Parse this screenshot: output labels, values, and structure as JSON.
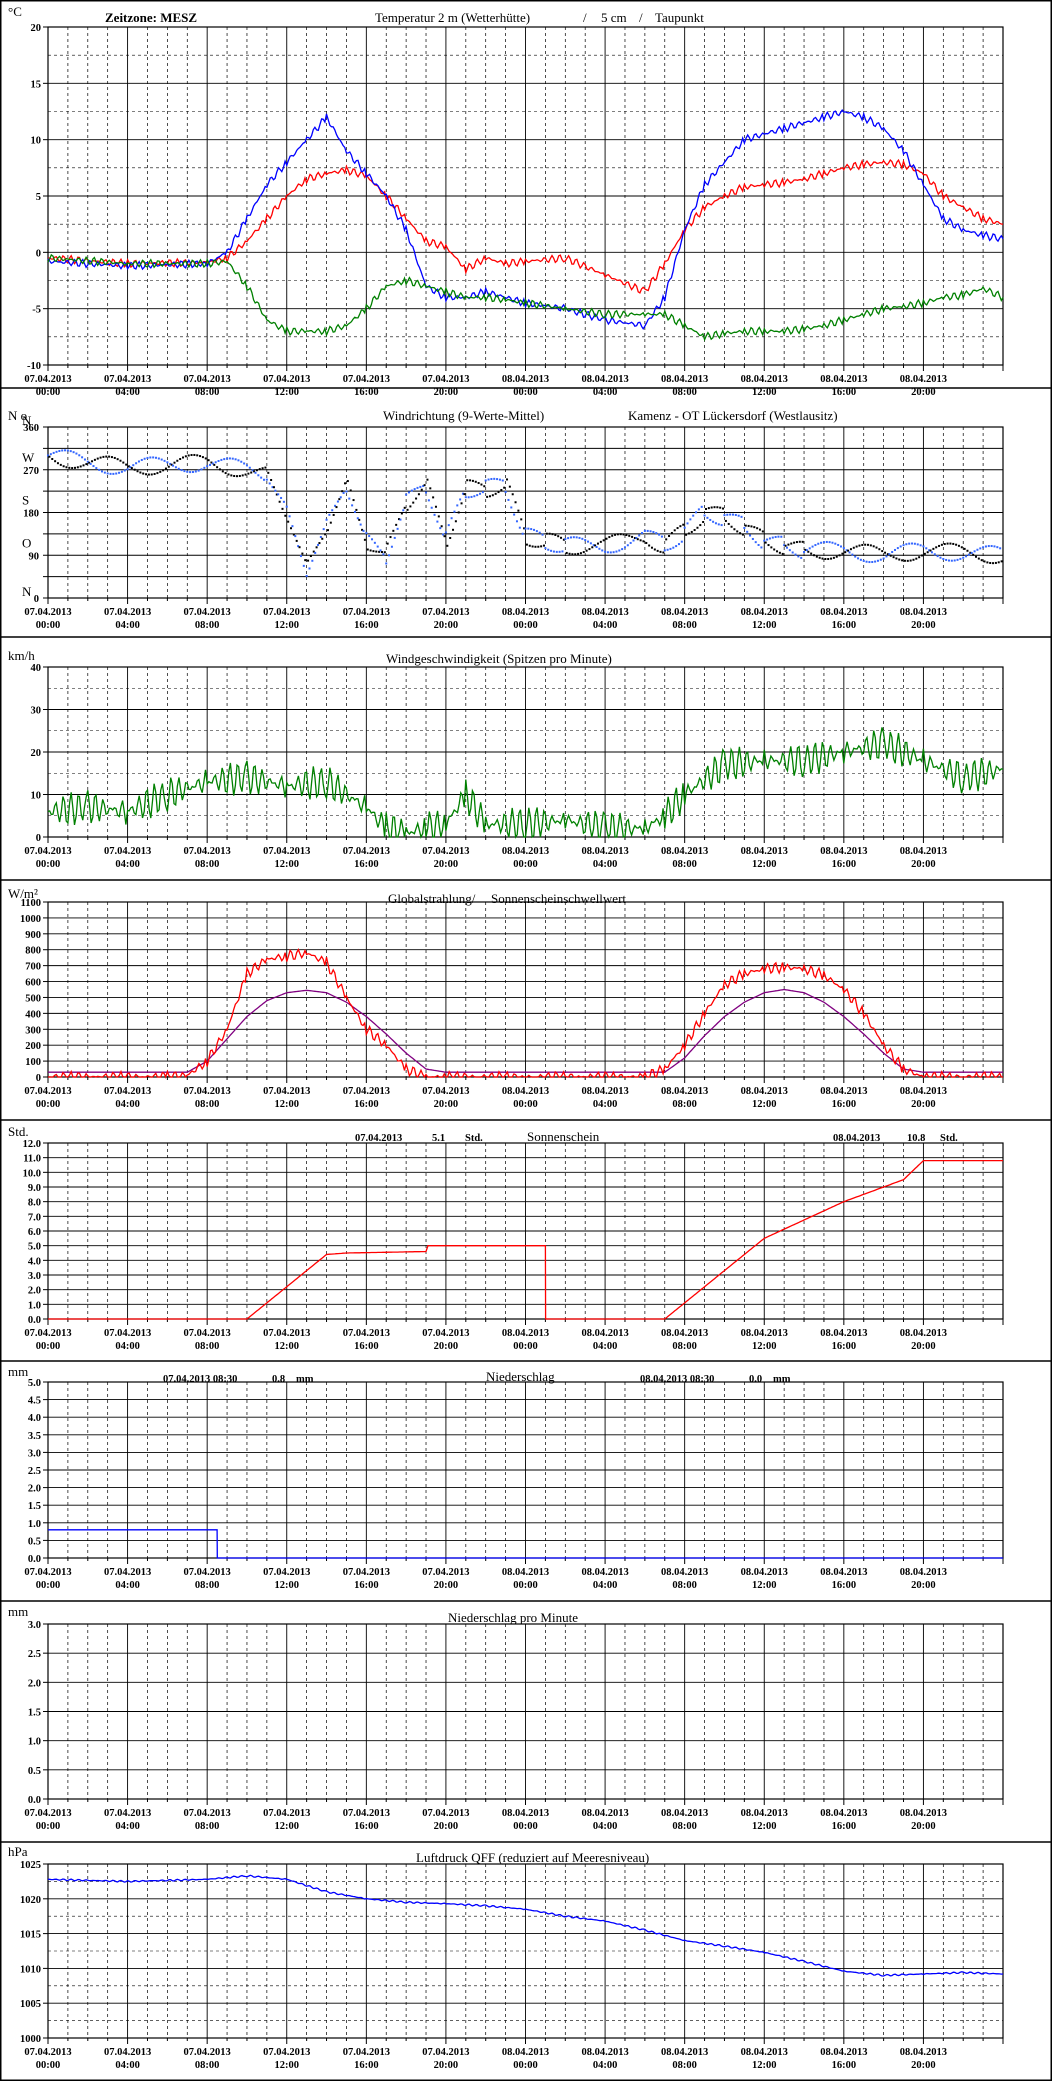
{
  "x_axis": {
    "tick_date_labels": [
      "07.04.2013",
      "07.04.2013",
      "07.04.2013",
      "07.04.2013",
      "07.04.2013",
      "07.04.2013",
      "08.04.2013",
      "08.04.2013",
      "08.04.2013",
      "08.04.2013",
      "08.04.2013",
      "08.04.2013"
    ],
    "tick_time_labels": [
      "00:00",
      "04:00",
      "08:00",
      "12:00",
      "16:00",
      "20:00",
      "00:00",
      "04:00",
      "08:00",
      "12:00",
      "16:00",
      "20:00"
    ],
    "range_hours": [
      0,
      48
    ]
  },
  "colors": {
    "red": "#ff0000",
    "blue": "#0000ff",
    "green": "#008000",
    "wind_blue": "#3366ff",
    "purple": "#800080",
    "grid": "#000000"
  },
  "panels": {
    "temperature": {
      "unit": "°C",
      "timezone": "Zeitzone: MESZ",
      "title_parts": [
        {
          "text": "Temperatur 2 m (Wetterhütte)",
          "color": "#ff0000"
        },
        {
          "text": " / ",
          "color": "#000000"
        },
        {
          "text": "5 cm",
          "color": "#0000ff"
        },
        {
          "text": " / ",
          "color": "#000000"
        },
        {
          "text": "Taupunkt",
          "color": "#008000"
        }
      ],
      "y_ticks": [
        "20",
        "15",
        "10",
        "5",
        "0",
        "-5",
        "-10"
      ]
    },
    "wind_direction": {
      "unit": "N o",
      "title_blue": "Windrichtung (9-Werte-Mittel)",
      "title_black": "Kamenz - OT Lückersdorf (Westlausitz)",
      "y_ticks": [
        "360",
        "270",
        "180",
        "90",
        "0"
      ],
      "y_letters": [
        "N",
        "W",
        "S",
        "O",
        "N"
      ]
    },
    "wind_speed": {
      "unit": "km/h",
      "title": "Windgeschwindigkeit (Spitzen pro Minute)",
      "y_ticks": [
        "40",
        "30",
        "20",
        "10",
        "0"
      ]
    },
    "radiation": {
      "unit": "W/m²",
      "title_black": "Globalstrahlung/ ",
      "title_purple": "Sonnenscheinschwellwert",
      "y_ticks": [
        "1100",
        "1000",
        "900",
        "800",
        "700",
        "600",
        "500",
        "400",
        "300",
        "200",
        "100",
        "0"
      ]
    },
    "sunshine": {
      "unit": "Std.",
      "title": "Sonnenschein",
      "day1_date": "07.04.2013",
      "day1_value": "5.1",
      "day1_unit": "Std.",
      "day2_date": "08.04.2013",
      "day2_value": "10.8",
      "day2_unit": "Std.",
      "y_ticks": [
        "12.0",
        "11.0",
        "10.0",
        "9.0",
        "8.0",
        "7.0",
        "6.0",
        "5.0",
        "4.0",
        "3.0",
        "2.0",
        "1.0",
        "0.0"
      ]
    },
    "precipitation": {
      "unit": "mm",
      "title": "Niederschlag",
      "day1_label": "07.04.2013 08:30",
      "day1_value": "0.8",
      "day1_unit": "mm",
      "day2_label": "08.04.2013 08:30",
      "day2_value": "0.0",
      "day2_unit": "mm",
      "y_ticks": [
        "5.0",
        "4.5",
        "4.0",
        "3.5",
        "3.0",
        "2.5",
        "2.0",
        "1.5",
        "1.0",
        "0.5",
        "0.0"
      ]
    },
    "precip_minute": {
      "unit": "mm",
      "title": "Niederschlag pro Minute",
      "y_ticks": [
        "3.0",
        "2.5",
        "2.0",
        "1.5",
        "1.0",
        "0.5",
        "0.0"
      ]
    },
    "pressure": {
      "unit": "hPa",
      "title": "Luftdruck QFF (reduziert auf Meeresniveau)",
      "y_ticks": [
        "1025",
        "1020",
        "1015",
        "1010",
        "1005",
        "1000"
      ]
    }
  },
  "chart_data": [
    {
      "type": "line",
      "title": "Temperatur 2 m (Wetterhütte) / 5 cm / Taupunkt",
      "ylabel": "°C",
      "ylim": [
        -10,
        20
      ],
      "xlim_hours": [
        0,
        48
      ],
      "series": [
        {
          "name": "Temperatur 2 m (Wetterhütte)",
          "color": "#ff0000",
          "x": [
            0,
            4,
            8,
            9,
            10,
            11,
            12,
            13,
            14,
            15,
            16,
            17,
            18,
            19,
            20,
            21,
            22,
            23,
            24,
            26,
            28,
            30,
            31,
            32,
            33,
            34,
            35,
            36,
            37,
            38,
            39,
            40,
            41,
            42,
            43,
            44,
            45,
            46,
            47,
            48
          ],
          "y": [
            -0.5,
            -1,
            -0.9,
            -0.5,
            1,
            3,
            5,
            6.5,
            7,
            7.3,
            6.8,
            5,
            3,
            1,
            0.5,
            -1.5,
            -0.5,
            -1,
            -0.8,
            -0.5,
            -2,
            -3.5,
            -1,
            2,
            4,
            5,
            5.8,
            6,
            6.2,
            6.5,
            7,
            7.5,
            7.8,
            8,
            7.8,
            7,
            5,
            4,
            3,
            2.5
          ]
        },
        {
          "name": "5 cm",
          "color": "#0000ff",
          "x": [
            0,
            4,
            8,
            9,
            10,
            11,
            12,
            13,
            14,
            15,
            16,
            17,
            18,
            19,
            20,
            21,
            22,
            23,
            24,
            26,
            28,
            30,
            31,
            32,
            33,
            34,
            35,
            36,
            37,
            38,
            39,
            40,
            41,
            42,
            43,
            44,
            45,
            46,
            47,
            48
          ],
          "y": [
            -0.8,
            -1.2,
            -1,
            0,
            3,
            6,
            8,
            10,
            12,
            9,
            7,
            5,
            2,
            -3,
            -4,
            -4,
            -3.5,
            -4,
            -4.5,
            -5,
            -6,
            -6.5,
            -4,
            2,
            6,
            8,
            10,
            10.5,
            11,
            11.5,
            12,
            12.5,
            12,
            11,
            9,
            6,
            3,
            2,
            1.5,
            1.2
          ]
        },
        {
          "name": "Taupunkt",
          "color": "#008000",
          "x": [
            0,
            4,
            8,
            9,
            10,
            11,
            12,
            13,
            14,
            15,
            16,
            17,
            18,
            19,
            20,
            21,
            22,
            23,
            24,
            26,
            28,
            30,
            31,
            32,
            33,
            34,
            35,
            36,
            37,
            38,
            39,
            40,
            41,
            42,
            43,
            44,
            45,
            46,
            47,
            48
          ],
          "y": [
            -0.5,
            -1,
            -1,
            -0.8,
            -3,
            -6,
            -7,
            -7,
            -7,
            -6.5,
            -5,
            -3,
            -2.5,
            -3,
            -3.5,
            -4,
            -4,
            -4.2,
            -4.5,
            -5,
            -5.5,
            -5.5,
            -5.5,
            -6.5,
            -7.5,
            -7.2,
            -7,
            -7,
            -7,
            -6.8,
            -6.5,
            -6,
            -5.5,
            -5,
            -4.8,
            -4.5,
            -4,
            -3.8,
            -3.2,
            -4
          ]
        }
      ]
    },
    {
      "type": "scatter",
      "title": "Windrichtung (9-Werte-Mittel)",
      "ylabel": "°",
      "ylim": [
        0,
        360
      ],
      "xlim_hours": [
        0,
        48
      ],
      "series": [
        {
          "name": "Windrichtung (9-Werte-Mittel)",
          "color": "#3366ff",
          "x": [
            0,
            2,
            4,
            6,
            8,
            10,
            11,
            12,
            13,
            14,
            15,
            16,
            17,
            18,
            19,
            20,
            21,
            22,
            23,
            24,
            25,
            26,
            28,
            30,
            31,
            32,
            33,
            34,
            35,
            36,
            37,
            38,
            40,
            42,
            44,
            46,
            48
          ],
          "y": [
            300,
            285,
            275,
            280,
            285,
            270,
            260,
            180,
            60,
            150,
            240,
            120,
            90,
            200,
            240,
            120,
            230,
            230,
            240,
            130,
            120,
            110,
            110,
            130,
            110,
            140,
            180,
            170,
            150,
            120,
            110,
            100,
            100,
            90,
            100,
            95,
            90
          ]
        }
      ]
    },
    {
      "type": "line",
      "title": "Windgeschwindigkeit (Spitzen pro Minute)",
      "ylabel": "km/h",
      "ylim": [
        0,
        40
      ],
      "xlim_hours": [
        0,
        48
      ],
      "series": [
        {
          "name": "Windgeschwindigkeit (Spitzen pro Minute)",
          "color": "#008000",
          "x": [
            0,
            2,
            4,
            6,
            8,
            10,
            12,
            14,
            16,
            17,
            18,
            19,
            20,
            21,
            22,
            24,
            26,
            28,
            30,
            31,
            32,
            34,
            36,
            38,
            40,
            42,
            44,
            46,
            48
          ],
          "y": [
            6,
            7,
            6,
            10,
            13,
            14,
            12,
            13,
            7,
            2,
            1,
            2,
            3,
            10,
            3,
            3,
            4,
            2,
            2,
            5,
            10,
            17,
            18,
            18,
            20,
            22,
            18,
            14,
            16
          ]
        }
      ]
    },
    {
      "type": "line",
      "title": "Globalstrahlung/ Sonnenscheinschwellwert",
      "ylabel": "W/m²",
      "ylim": [
        0,
        1100
      ],
      "xlim_hours": [
        0,
        48
      ],
      "series": [
        {
          "name": "Globalstrahlung",
          "color": "#ff0000",
          "x": [
            0,
            6,
            7,
            8,
            9,
            10,
            11,
            12,
            13,
            14,
            15,
            16,
            17,
            18,
            19,
            20,
            24,
            30,
            31,
            32,
            33,
            34,
            35,
            36,
            37,
            38,
            39,
            40,
            41,
            42,
            43,
            44,
            48
          ],
          "y": [
            0,
            0,
            10,
            100,
            300,
            650,
            740,
            760,
            780,
            720,
            500,
            300,
            200,
            50,
            0,
            0,
            0,
            0,
            50,
            200,
            400,
            580,
            650,
            680,
            690,
            680,
            640,
            550,
            400,
            200,
            50,
            0,
            0
          ]
        },
        {
          "name": "Sonnenscheinschwellwert",
          "color": "#800080",
          "x": [
            0,
            7,
            8,
            9,
            10,
            11,
            12,
            13,
            14,
            15,
            16,
            17,
            18,
            19,
            20,
            24,
            31,
            32,
            33,
            34,
            35,
            36,
            37,
            38,
            39,
            40,
            41,
            42,
            43,
            44,
            48
          ],
          "y": [
            30,
            30,
            100,
            240,
            380,
            480,
            530,
            545,
            530,
            470,
            380,
            270,
            150,
            50,
            30,
            30,
            30,
            120,
            260,
            380,
            470,
            530,
            550,
            530,
            470,
            380,
            270,
            150,
            50,
            30,
            30
          ]
        }
      ]
    },
    {
      "type": "line",
      "title": "Sonnenschein",
      "ylabel": "Std.",
      "ylim": [
        0,
        12
      ],
      "xlim_hours": [
        0,
        48
      ],
      "series": [
        {
          "name": "Sonnenschein",
          "color": "#ff0000",
          "x": [
            0,
            10,
            14,
            15,
            19,
            19.1,
            25,
            25.01,
            31,
            36,
            40,
            43,
            44,
            48
          ],
          "y": [
            0,
            0,
            4.4,
            4.5,
            4.6,
            5.0,
            5.0,
            0,
            0,
            5.5,
            8,
            9.5,
            10.8,
            10.8
          ]
        }
      ]
    },
    {
      "type": "line",
      "title": "Niederschlag",
      "ylabel": "mm",
      "ylim": [
        0,
        5
      ],
      "xlim_hours": [
        0,
        48
      ],
      "series": [
        {
          "name": "Niederschlag",
          "color": "#0000ff",
          "x": [
            0,
            8.5,
            8.51,
            48
          ],
          "y": [
            0.8,
            0.8,
            0,
            0
          ]
        }
      ]
    },
    {
      "type": "line",
      "title": "Niederschlag pro Minute",
      "ylabel": "mm",
      "ylim": [
        0,
        3
      ],
      "xlim_hours": [
        0,
        48
      ],
      "series": []
    },
    {
      "type": "line",
      "title": "Luftdruck QFF (reduziert auf Meeresniveau)",
      "ylabel": "hPa",
      "ylim": [
        1000,
        1025
      ],
      "xlim_hours": [
        0,
        48
      ],
      "series": [
        {
          "name": "Luftdruck QFF",
          "color": "#0000ff",
          "x": [
            0,
            4,
            8,
            10,
            12,
            14,
            16,
            18,
            20,
            22,
            24,
            26,
            28,
            30,
            32,
            34,
            36,
            38,
            40,
            42,
            44,
            46,
            48
          ],
          "y": [
            1022.8,
            1022.5,
            1022.8,
            1023.3,
            1022.8,
            1021,
            1020,
            1019.5,
            1019.3,
            1019,
            1018.5,
            1017.5,
            1016.8,
            1015.5,
            1014,
            1013.2,
            1012.3,
            1011,
            1009.6,
            1009,
            1009.2,
            1009.4,
            1009.2
          ]
        }
      ]
    }
  ]
}
